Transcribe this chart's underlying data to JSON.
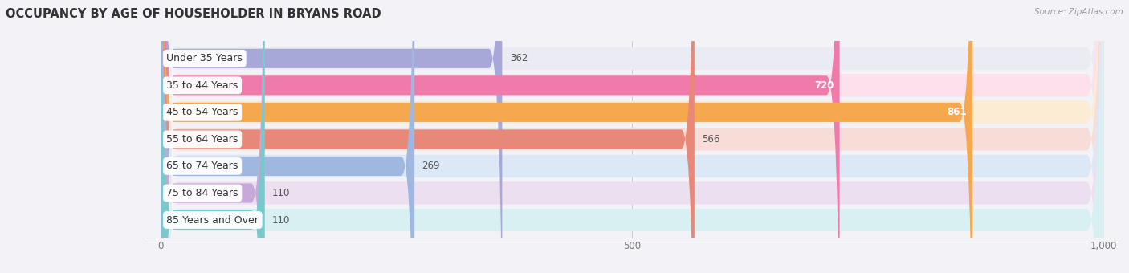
{
  "title": "OCCUPANCY BY AGE OF HOUSEHOLDER IN BRYANS ROAD",
  "source": "Source: ZipAtlas.com",
  "categories": [
    "Under 35 Years",
    "35 to 44 Years",
    "45 to 54 Years",
    "55 to 64 Years",
    "65 to 74 Years",
    "75 to 84 Years",
    "85 Years and Over"
  ],
  "values": [
    362,
    720,
    861,
    566,
    269,
    110,
    110
  ],
  "bar_colors": [
    "#a8a8d8",
    "#f07aaa",
    "#f5a84e",
    "#e88878",
    "#a0b8e0",
    "#c8a8d8",
    "#78c8cc"
  ],
  "bar_bg_colors": [
    "#ebebf3",
    "#fce0ec",
    "#fdecd4",
    "#f8dcd8",
    "#dce8f5",
    "#ece0f0",
    "#d8f0f2"
  ],
  "xlim_max": 1000,
  "xticks": [
    0,
    500,
    1000
  ],
  "background_color": "#f2f2f7",
  "title_fontsize": 10.5,
  "label_fontsize": 9,
  "value_fontsize": 8.5,
  "value_inside_threshold": 600
}
